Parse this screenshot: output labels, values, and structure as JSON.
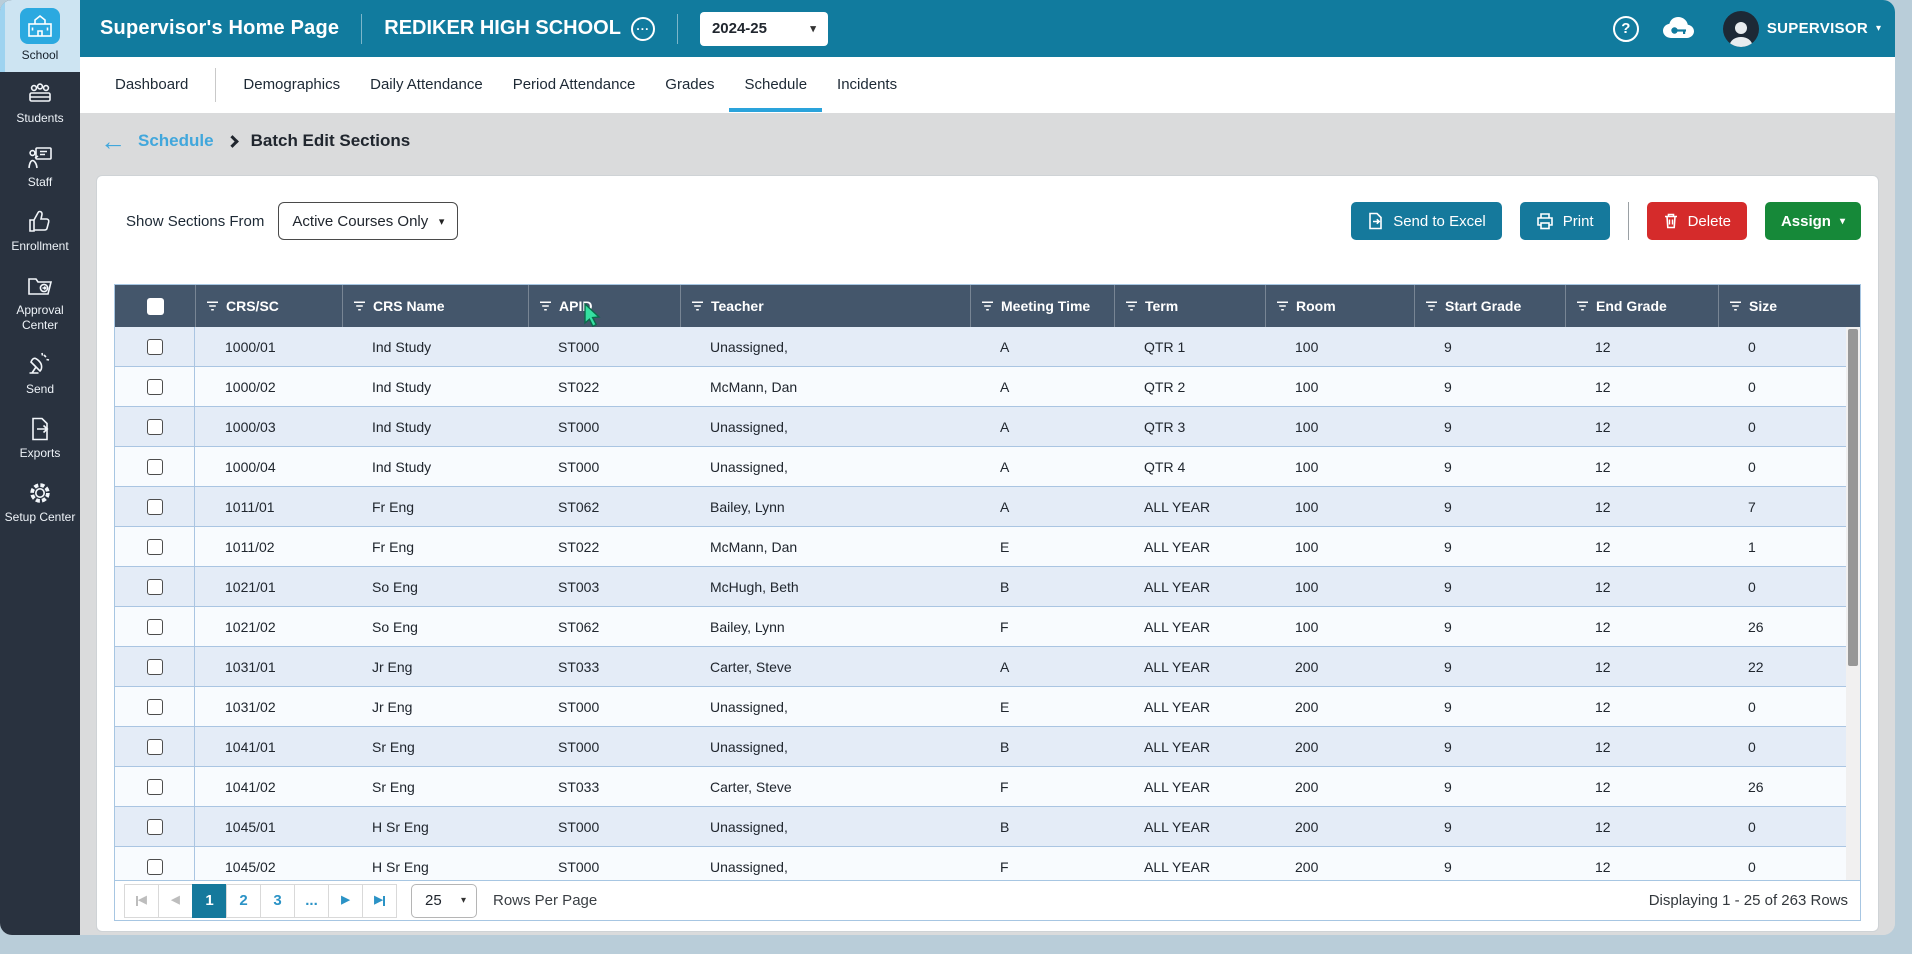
{
  "header": {
    "page_title": "Supervisor's Home Page",
    "school_name": "REDIKER HIGH SCHOOL",
    "year_selected": "2024-25",
    "user_name": "SUPERVISOR"
  },
  "sidebar": {
    "items": [
      {
        "label": "School",
        "icon": "school",
        "active": true
      },
      {
        "label": "Students",
        "icon": "students",
        "active": false
      },
      {
        "label": "Staff",
        "icon": "staff",
        "active": false
      },
      {
        "label": "Enrollment",
        "icon": "enrollment",
        "active": false
      },
      {
        "label": "Approval Center",
        "icon": "approval",
        "active": false
      },
      {
        "label": "Send",
        "icon": "send",
        "active": false
      },
      {
        "label": "Exports",
        "icon": "exports",
        "active": false
      },
      {
        "label": "Setup Center",
        "icon": "setup",
        "active": false
      }
    ]
  },
  "tabs": [
    {
      "label": "Dashboard",
      "active": false,
      "divider_after": true
    },
    {
      "label": "Demographics",
      "active": false
    },
    {
      "label": "Daily Attendance",
      "active": false
    },
    {
      "label": "Period Attendance",
      "active": false
    },
    {
      "label": "Grades",
      "active": false
    },
    {
      "label": "Schedule",
      "active": true
    },
    {
      "label": "Incidents",
      "active": false
    }
  ],
  "breadcrumb": {
    "parent": "Schedule",
    "current": "Batch Edit Sections"
  },
  "toolbar": {
    "filter_label": "Show Sections From",
    "filter_value": "Active Courses Only",
    "send_to_excel_label": "Send to Excel",
    "print_label": "Print",
    "delete_label": "Delete",
    "assign_label": "Assign"
  },
  "table": {
    "columns": [
      "CRS/SC",
      "CRS Name",
      "APID",
      "Teacher",
      "Meeting Time",
      "Term",
      "Room",
      "Start Grade",
      "End Grade",
      "Size"
    ],
    "rows": [
      [
        "1000/01",
        "Ind Study",
        "ST000",
        "Unassigned,",
        "A",
        "QTR 1",
        "100",
        "9",
        "12",
        "0"
      ],
      [
        "1000/02",
        "Ind Study",
        "ST022",
        "McMann, Dan",
        "A",
        "QTR 2",
        "100",
        "9",
        "12",
        "0"
      ],
      [
        "1000/03",
        "Ind Study",
        "ST000",
        "Unassigned,",
        "A",
        "QTR 3",
        "100",
        "9",
        "12",
        "0"
      ],
      [
        "1000/04",
        "Ind Study",
        "ST000",
        "Unassigned,",
        "A",
        "QTR 4",
        "100",
        "9",
        "12",
        "0"
      ],
      [
        "1011/01",
        "Fr Eng",
        "ST062",
        "Bailey, Lynn",
        "A",
        "ALL YEAR",
        "100",
        "9",
        "12",
        "7"
      ],
      [
        "1011/02",
        "Fr Eng",
        "ST022",
        "McMann, Dan",
        "E",
        "ALL YEAR",
        "100",
        "9",
        "12",
        "1"
      ],
      [
        "1021/01",
        "So Eng",
        "ST003",
        "McHugh, Beth",
        "B",
        "ALL YEAR",
        "100",
        "9",
        "12",
        "0"
      ],
      [
        "1021/02",
        "So Eng",
        "ST062",
        "Bailey, Lynn",
        "F",
        "ALL YEAR",
        "100",
        "9",
        "12",
        "26"
      ],
      [
        "1031/01",
        "Jr Eng",
        "ST033",
        "Carter, Steve",
        "A",
        "ALL YEAR",
        "200",
        "9",
        "12",
        "22"
      ],
      [
        "1031/02",
        "Jr Eng",
        "ST000",
        "Unassigned,",
        "E",
        "ALL YEAR",
        "200",
        "9",
        "12",
        "0"
      ],
      [
        "1041/01",
        "Sr Eng",
        "ST000",
        "Unassigned,",
        "B",
        "ALL YEAR",
        "200",
        "9",
        "12",
        "0"
      ],
      [
        "1041/02",
        "Sr Eng",
        "ST033",
        "Carter, Steve",
        "F",
        "ALL YEAR",
        "200",
        "9",
        "12",
        "26"
      ],
      [
        "1045/01",
        "H Sr Eng",
        "ST000",
        "Unassigned,",
        "B",
        "ALL YEAR",
        "200",
        "9",
        "12",
        "0"
      ],
      [
        "1045/02",
        "H Sr Eng",
        "ST000",
        "Unassigned,",
        "F",
        "ALL YEAR",
        "200",
        "9",
        "12",
        "0"
      ]
    ]
  },
  "pager": {
    "pages": [
      "1",
      "2",
      "3",
      "..."
    ],
    "active_page": "1",
    "rows_per_page": "25",
    "rows_per_page_label": "Rows Per Page",
    "summary": "Displaying 1 - 25 of 263 Rows"
  },
  "colors": {
    "header_teal": "#117b9e",
    "sidebar_dark": "#29323f",
    "active_tile_blue": "#2ba9e0",
    "accent_link_blue": "#41a7dc",
    "tab_underline": "#2aa3db",
    "table_header": "#44566b",
    "row_odd": "#e4ecf7",
    "row_even": "#f8fbfe",
    "button_teal": "#15799c",
    "button_red": "#d52b2b",
    "button_green": "#168939",
    "desktop_bg": "#b9cdd9"
  }
}
